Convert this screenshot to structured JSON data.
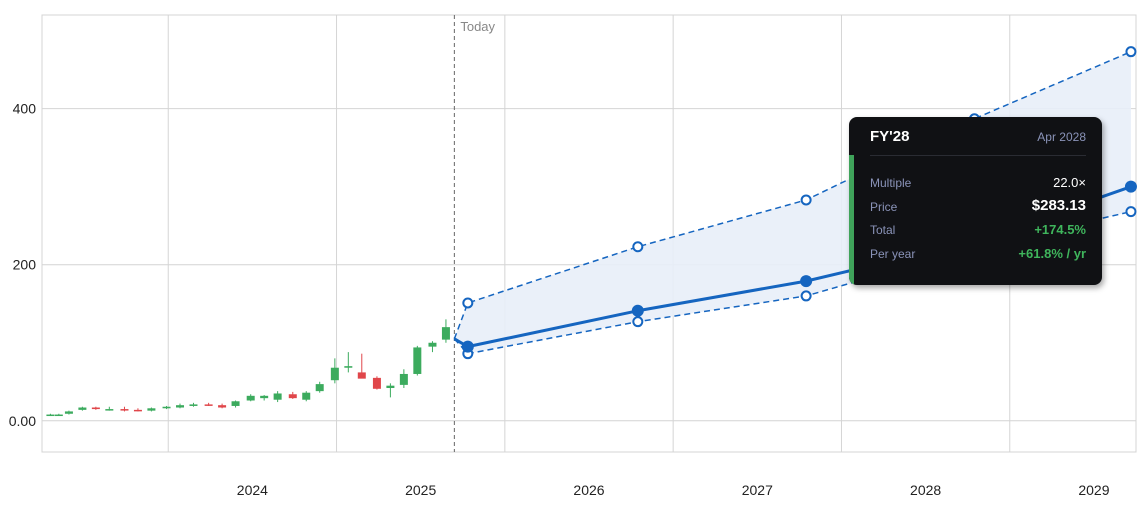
{
  "chart_data": {
    "type": "candlestick+projection",
    "today_label": "Today",
    "x_tick_labels": [
      "2024",
      "2025",
      "2026",
      "2027",
      "2028",
      "2029"
    ],
    "x_tick_years": [
      2024,
      2025,
      2026,
      2027,
      2028,
      2029
    ],
    "x_range": [
      2023.25,
      2029.75
    ],
    "y_tick_labels": [
      "0.00",
      "200",
      "400"
    ],
    "y_tick_values": [
      0,
      200,
      400
    ],
    "ylim": [
      -40,
      520
    ],
    "today_x": 2025.7,
    "candles": [
      {
        "t": 2023.3,
        "o": 8,
        "h": 9,
        "l": 7,
        "c": 8
      },
      {
        "t": 2023.35,
        "o": 8,
        "h": 9,
        "l": 7,
        "c": 8
      },
      {
        "t": 2023.41,
        "o": 9,
        "h": 13,
        "l": 8,
        "c": 12
      },
      {
        "t": 2023.49,
        "o": 14,
        "h": 18,
        "l": 13,
        "c": 17
      },
      {
        "t": 2023.57,
        "o": 17,
        "h": 18,
        "l": 14,
        "c": 15
      },
      {
        "t": 2023.65,
        "o": 15,
        "h": 18,
        "l": 13,
        "c": 15
      },
      {
        "t": 2023.74,
        "o": 15,
        "h": 18,
        "l": 12,
        "c": 14
      },
      {
        "t": 2023.82,
        "o": 14,
        "h": 16,
        "l": 12,
        "c": 13
      },
      {
        "t": 2023.9,
        "o": 13,
        "h": 17,
        "l": 12,
        "c": 16
      },
      {
        "t": 2023.99,
        "o": 16,
        "h": 19,
        "l": 15,
        "c": 18
      },
      {
        "t": 2024.07,
        "o": 17,
        "h": 22,
        "l": 16,
        "c": 20
      },
      {
        "t": 2024.15,
        "o": 19,
        "h": 23,
        "l": 18,
        "c": 21
      },
      {
        "t": 2024.24,
        "o": 21,
        "h": 23,
        "l": 19,
        "c": 20
      },
      {
        "t": 2024.32,
        "o": 20,
        "h": 22,
        "l": 16,
        "c": 17
      },
      {
        "t": 2024.4,
        "o": 19,
        "h": 26,
        "l": 17,
        "c": 25
      },
      {
        "t": 2024.49,
        "o": 26,
        "h": 34,
        "l": 25,
        "c": 32
      },
      {
        "t": 2024.57,
        "o": 29,
        "h": 33,
        "l": 26,
        "c": 32
      },
      {
        "t": 2024.65,
        "o": 27,
        "h": 38,
        "l": 24,
        "c": 35
      },
      {
        "t": 2024.74,
        "o": 34,
        "h": 37,
        "l": 28,
        "c": 29
      },
      {
        "t": 2024.82,
        "o": 27,
        "h": 38,
        "l": 25,
        "c": 36
      },
      {
        "t": 2024.9,
        "o": 38,
        "h": 50,
        "l": 36,
        "c": 47
      },
      {
        "t": 2024.99,
        "o": 52,
        "h": 80,
        "l": 48,
        "c": 68
      },
      {
        "t": 2025.07,
        "o": 68,
        "h": 88,
        "l": 62,
        "c": 70
      },
      {
        "t": 2025.15,
        "o": 62,
        "h": 86,
        "l": 56,
        "c": 54
      },
      {
        "t": 2025.24,
        "o": 55,
        "h": 57,
        "l": 40,
        "c": 41
      },
      {
        "t": 2025.32,
        "o": 42,
        "h": 48,
        "l": 30,
        "c": 45
      },
      {
        "t": 2025.4,
        "o": 46,
        "h": 66,
        "l": 42,
        "c": 60
      },
      {
        "t": 2025.48,
        "o": 60,
        "h": 96,
        "l": 58,
        "c": 94
      },
      {
        "t": 2025.57,
        "o": 95,
        "h": 102,
        "l": 88,
        "c": 100
      },
      {
        "t": 2025.65,
        "o": 104,
        "h": 130,
        "l": 100,
        "c": 120
      }
    ],
    "candles_fitted": true,
    "projection": {
      "x": [
        2025.7,
        2025.78,
        2026.79,
        2027.79,
        2028.79,
        2029.72
      ],
      "mid": [
        105,
        95,
        141,
        179,
        230,
        300
      ],
      "high": [
        105,
        151,
        223,
        283,
        387,
        473
      ],
      "low": [
        105,
        86,
        127,
        160,
        222,
        268
      ]
    },
    "colors": {
      "up": "#3cab5e",
      "down": "#e0464a",
      "line": "#1565c0",
      "band": "#e8eef8",
      "grid": "#d4d4d4",
      "today": "#666666"
    }
  },
  "tooltip": {
    "title": "FY'28",
    "date": "Apr 2028",
    "rows": [
      {
        "label": "Multiple",
        "value": "22.0×"
      },
      {
        "label": "Price",
        "value": "$283.13"
      },
      {
        "label": "Total",
        "value": "+174.5%"
      },
      {
        "label": "Per year",
        "value": "+61.8% / yr"
      }
    ]
  }
}
